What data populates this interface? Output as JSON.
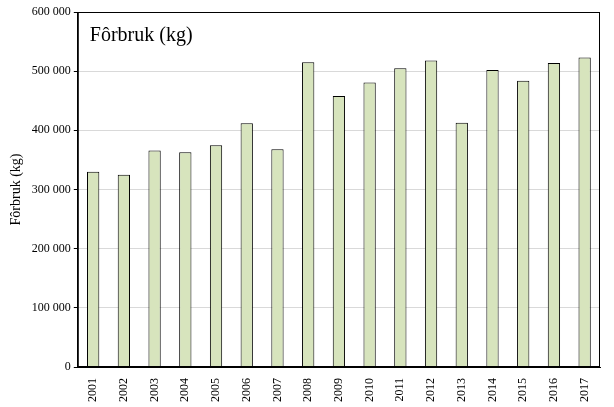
{
  "chart_data": {
    "type": "bar",
    "title": "Fôrbruk (kg)",
    "y_label": "Fôrbruk (kg)",
    "categories": [
      "2001",
      "2002",
      "2003",
      "2004",
      "2005",
      "2006",
      "2007",
      "2008",
      "2009",
      "2010",
      "2011",
      "2012",
      "2013",
      "2014",
      "2015",
      "2016",
      "2017"
    ],
    "values": [
      330000,
      325000,
      366000,
      363000,
      375000,
      412000,
      368000,
      515000,
      458000,
      481000,
      505000,
      518000,
      413000,
      502000,
      484000,
      514000,
      523000
    ],
    "color": "#d7e4bd",
    "ylim": [
      0,
      600000
    ],
    "yticks": [
      0,
      {
        "value": 100000,
        "label": "100 000"
      },
      {
        "value": 200000,
        "label": "200 000"
      },
      {
        "value": 300000,
        "label": "300 000"
      },
      {
        "value": 400000,
        "label": "400 000"
      },
      {
        "value": 500000,
        "label": "500 000"
      },
      {
        "value": 600000,
        "label": "600 000"
      }
    ],
    "grid": true
  }
}
